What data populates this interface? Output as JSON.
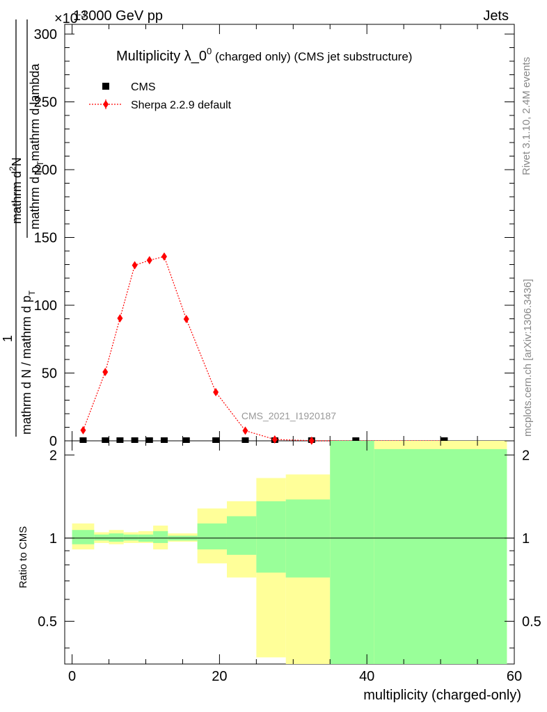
{
  "header": {
    "left_label": "13000 GeV pp",
    "right_label": "Jets",
    "exponent_label": "×10",
    "exponent_power": "-3"
  },
  "side_labels": {
    "rivet": "Rivet 3.1.10,  2.4M events",
    "mcplots": "mcplots.cern.ch [arXiv:1306.3436]"
  },
  "chart_data": [
    {
      "type": "scatter",
      "title": "Multiplicity λ_0",
      "title_superscript": "0",
      "title_suffix": " (charged only) (CMS jet substructure)",
      "ylabel_lines": [
        "1",
        "mathrm d N / mathrm d p_T mathrm d p_T mathrm d lambda",
        "mathrm d^2N",
        "mathrm d p_T mathrm d lambda"
      ],
      "ylabel_full": "mathrm d N / mathrm d p",
      "ylabel_parts": {
        "numerator_top": "mathrm d",
        "numerator_sup": "2",
        "numerator_rest": "N",
        "frac1_num": "1",
        "frac1_den": "mathrm d N / mathrm d p",
        "frac1_den_sub": "T",
        "frac1_den_rest": "mathrm d p",
        "frac1_den_sub2": "T",
        "frac1_den_rest2": "mathrm d lambda"
      },
      "watermark": "CMS_2021_I1920187",
      "ylim": [
        0,
        300
      ],
      "xlim": [
        -1,
        60
      ],
      "yticks": [
        "0",
        "50",
        "100",
        "150",
        "200",
        "250",
        "300"
      ],
      "legend_placement": "top-left",
      "series": [
        {
          "name": "CMS",
          "color": "#000000",
          "marker": "square",
          "x": [
            1.5,
            4.5,
            6.5,
            8.5,
            10.5,
            12.5,
            15.5,
            19.5,
            23.5,
            27.5,
            32.5,
            38.5,
            50.5
          ],
          "y": [
            0.3,
            0.3,
            0.3,
            0.3,
            0.3,
            0.3,
            0.3,
            0.3,
            0.3,
            0.2,
            0.2,
            0.2,
            0.2
          ]
        },
        {
          "name": "Sherpa 2.2.9 default",
          "color": "#ff0000",
          "marker": "diamond",
          "x": [
            1.5,
            4.5,
            6.5,
            8.5,
            10.5,
            12.5,
            15.5,
            19.5,
            23.5,
            27.5,
            32.5,
            38.5,
            50.5
          ],
          "y": [
            7.8,
            50.8,
            90.4,
            129.5,
            133.2,
            135.9,
            89.8,
            35.9,
            7.5,
            1.0,
            0.1,
            0.0,
            0.0
          ],
          "yerr": [
            1.0,
            1.5,
            2.0,
            2.5,
            2.5,
            2.5,
            2.0,
            1.5,
            1.0,
            0.3,
            0.1,
            0.0,
            0.0
          ]
        }
      ]
    },
    {
      "type": "area",
      "ylabel": "Ratio to CMS",
      "xlabel": "multiplicity (charged-only)",
      "ylim": [
        0.35,
        2.25
      ],
      "xlim": [
        -1,
        60
      ],
      "yticks": [
        "0.5",
        "1",
        "2"
      ],
      "xticks": [
        "0",
        "20",
        "40",
        "60"
      ],
      "reference_line": 1,
      "bands": {
        "edges": [
          0,
          3,
          5,
          7,
          9,
          11,
          13,
          17,
          21,
          25,
          29,
          35,
          41,
          59
        ],
        "yellow_color": "#ffff99",
        "green_color": "#99ff99",
        "yellow_lo": [
          0.91,
          0.96,
          0.95,
          0.96,
          0.96,
          0.91,
          0.97,
          0.81,
          0.72,
          0.37,
          0.35,
          0.35,
          0.35
        ],
        "yellow_hi": [
          1.13,
          1.05,
          1.07,
          1.05,
          1.06,
          1.11,
          1.04,
          1.28,
          1.36,
          1.65,
          1.7,
          2.25,
          2.25
        ],
        "green_lo": [
          0.95,
          0.98,
          0.97,
          0.98,
          0.97,
          0.96,
          0.98,
          0.91,
          0.87,
          0.75,
          0.72,
          0.35,
          0.35
        ],
        "green_hi": [
          1.07,
          1.03,
          1.04,
          1.03,
          1.03,
          1.06,
          1.02,
          1.13,
          1.2,
          1.36,
          1.38,
          2.25,
          2.1
        ]
      }
    }
  ]
}
